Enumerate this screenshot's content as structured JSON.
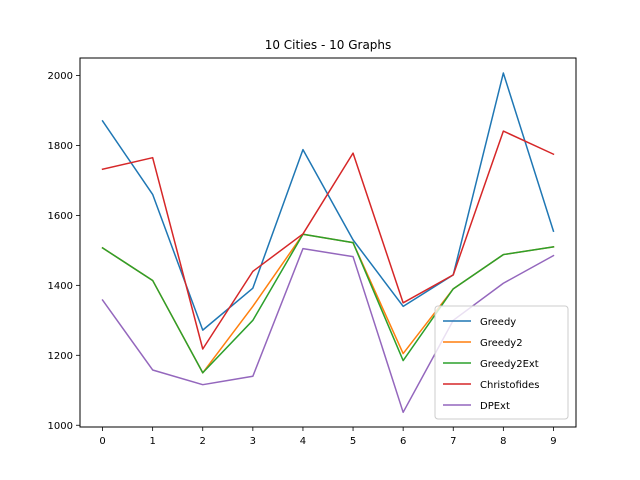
{
  "chart_data": {
    "type": "line",
    "title": "10 Cities - 10 Graphs",
    "xlabel": "",
    "ylabel": "",
    "x": [
      0,
      1,
      2,
      3,
      4,
      5,
      6,
      7,
      8,
      9
    ],
    "xticks": [
      0,
      1,
      2,
      3,
      4,
      5,
      6,
      7,
      8,
      9
    ],
    "yticks": [
      1000,
      1200,
      1400,
      1600,
      1800,
      2000
    ],
    "xlim": [
      -0.45,
      9.45
    ],
    "ylim": [
      995,
      2050
    ],
    "grid": false,
    "legend_position": "lower right",
    "series": [
      {
        "name": "Greedy",
        "color": "#1f77b4",
        "values": [
          1870,
          1660,
          1272,
          1392,
          1788,
          1530,
          1340,
          1430,
          2007,
          1555
        ]
      },
      {
        "name": "Greedy2",
        "color": "#ff7f0e",
        "values": [
          1507,
          1414,
          1150,
          1340,
          1546,
          1522,
          1205,
          1390,
          1488,
          1510
        ]
      },
      {
        "name": "Greedy2Ext",
        "color": "#2ca02c",
        "values": [
          1507,
          1414,
          1150,
          1300,
          1546,
          1522,
          1185,
          1390,
          1488,
          1510
        ]
      },
      {
        "name": "Christofides",
        "color": "#d62728",
        "values": [
          1732,
          1765,
          1218,
          1440,
          1547,
          1778,
          1350,
          1430,
          1841,
          1775
        ]
      },
      {
        "name": "DPExt",
        "color": "#9467bd",
        "values": [
          1358,
          1158,
          1116,
          1140,
          1505,
          1482,
          1037,
          1300,
          1406,
          1485
        ]
      }
    ]
  }
}
